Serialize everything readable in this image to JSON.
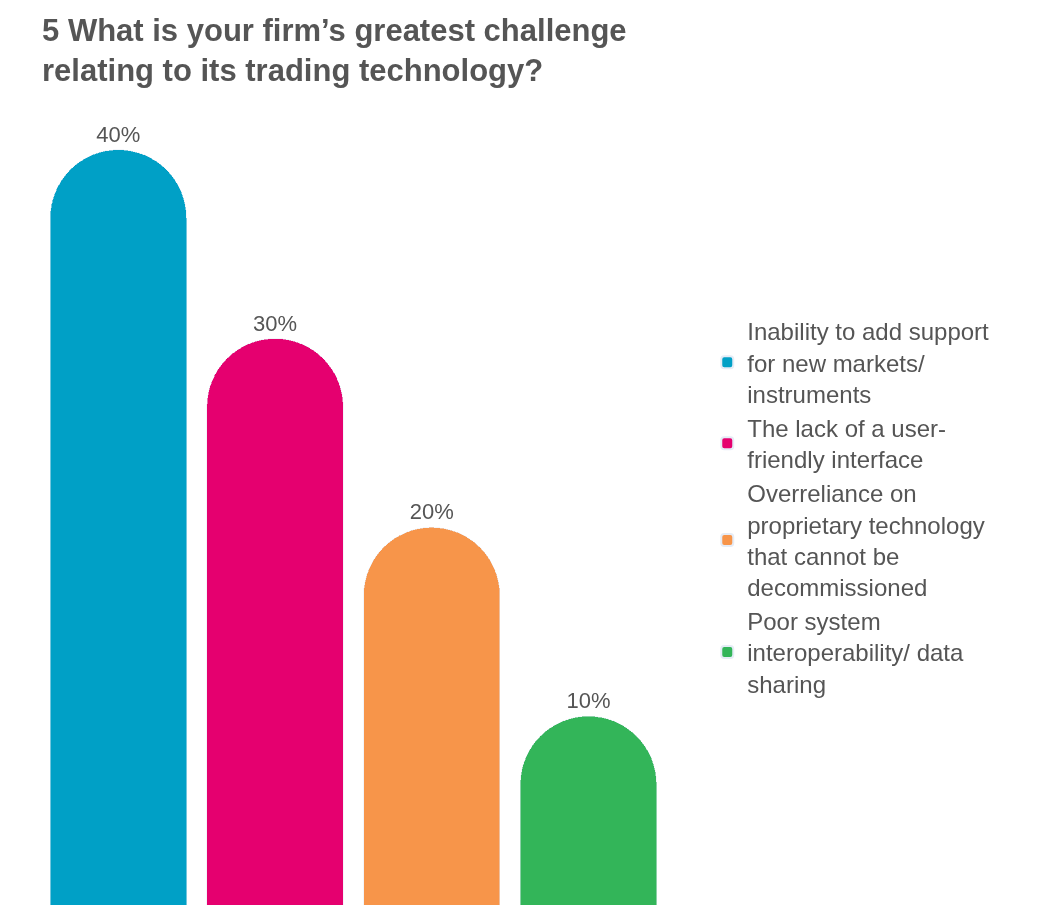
{
  "chart_data": {
    "type": "bar",
    "title": "5 What is your firm’s greatest challenge\nrelating to its trading technology?",
    "categories": [
      null,
      null,
      null,
      null
    ],
    "series": [
      {
        "name": "Inability to add support for new markets/ instruments",
        "color": "#00a0c6",
        "values": [
          40,
          null,
          null,
          null
        ],
        "value_labels": [
          "40%",
          null,
          null,
          null
        ]
      },
      {
        "name": "The lack of a user- friendly interface",
        "color": "#e5006f",
        "values": [
          null,
          30,
          null,
          null
        ],
        "value_labels": [
          null,
          "30%",
          null,
          null
        ]
      },
      {
        "name": "Overreliance on proprietary technology that cannot be decommissioned",
        "color": "#f7954a",
        "values": [
          null,
          null,
          20,
          null
        ],
        "value_labels": [
          null,
          null,
          "20%",
          null
        ]
      },
      {
        "name": "Poor system interoperability/ data sharing",
        "color": "#33b559",
        "values": [
          null,
          null,
          null,
          10
        ],
        "value_labels": [
          null,
          null,
          null,
          "10%"
        ]
      }
    ],
    "stacked": true,
    "legend": "right"
  }
}
